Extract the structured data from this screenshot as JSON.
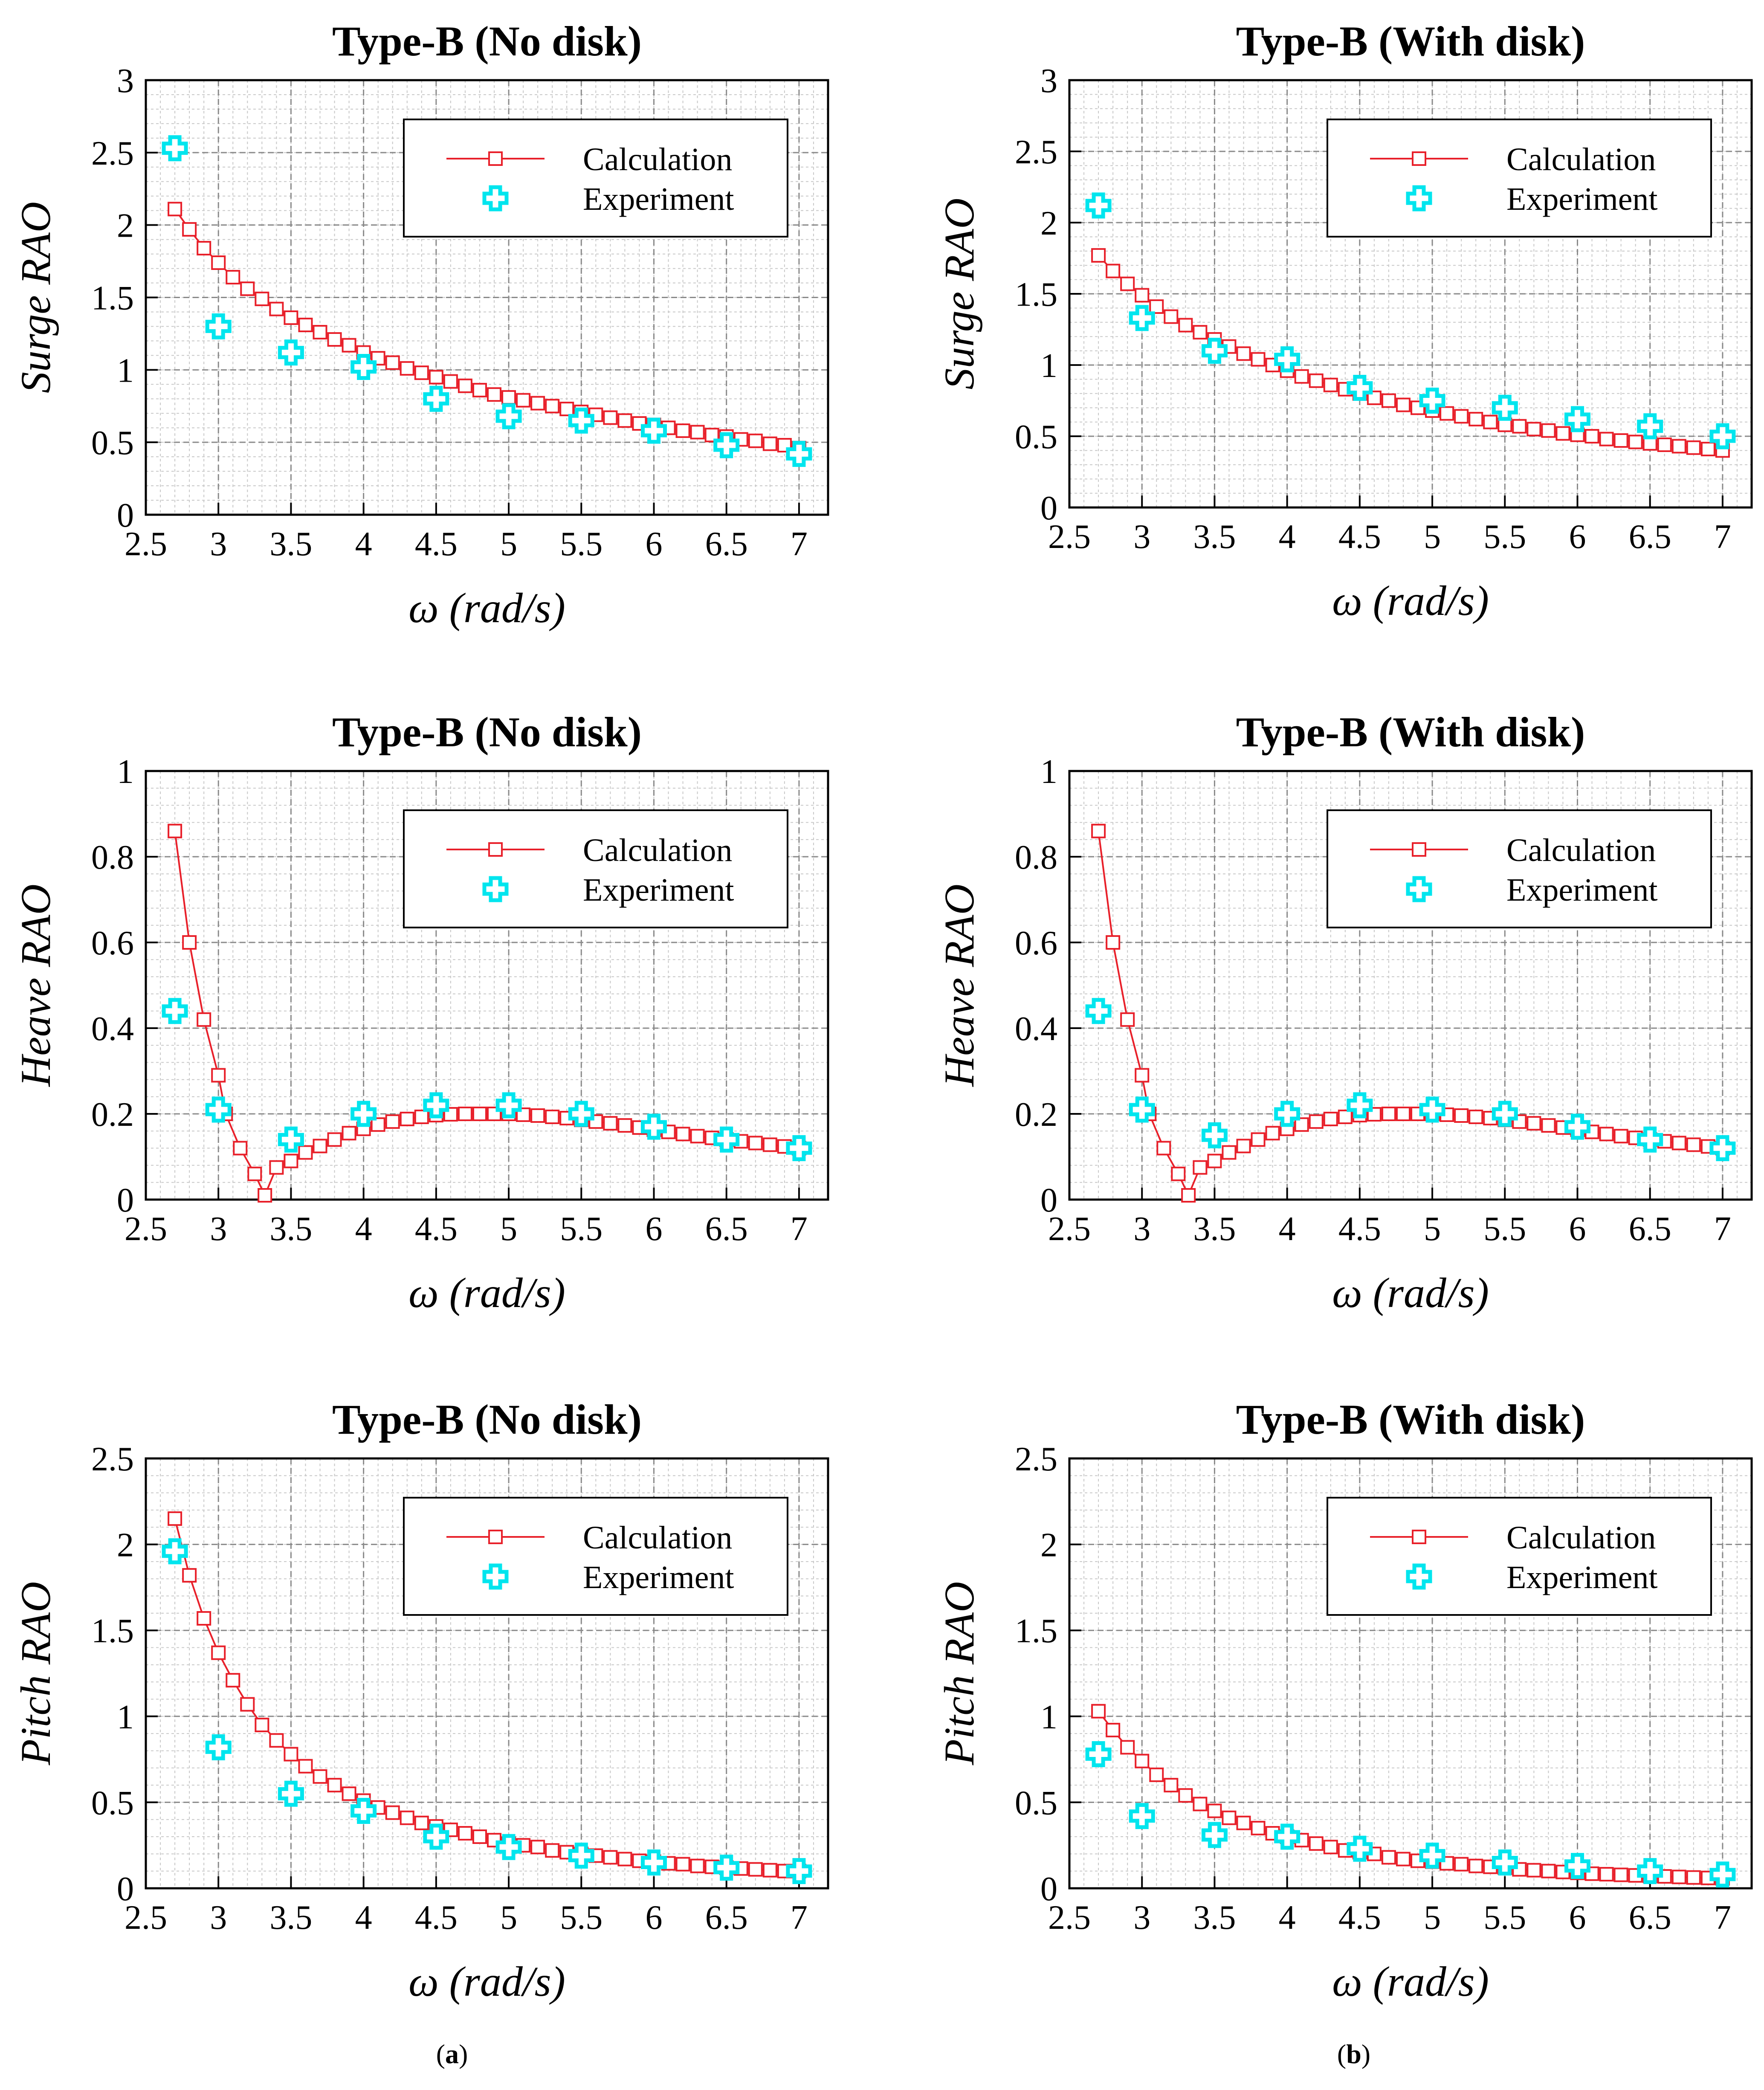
{
  "figure": {
    "panel_labels": [
      "a",
      "b"
    ],
    "colors": {
      "calculation": "#e8202a",
      "experiment": "#00e5ee",
      "grid_major": "#8a8a8a",
      "grid_minor": "#c8c8c8",
      "axis": "#000000"
    }
  },
  "chart_data": [
    {
      "type": "line",
      "title": "Type-B (No disk)",
      "xlabel": "ω (rad/s)",
      "ylabel": "Surge RAO",
      "xlim": [
        2.5,
        7.2
      ],
      "ylim": [
        0,
        3
      ],
      "xticks": [
        "2.5",
        "3",
        "3.5",
        "4",
        "4.5",
        "5",
        "5.5",
        "6",
        "6.5",
        "7"
      ],
      "yticks": [
        "0",
        "0.5",
        "1",
        "1.5",
        "2",
        "2.5",
        "3"
      ],
      "grid": true,
      "legend": "top-right",
      "series": [
        {
          "name": "Calculation",
          "marker": "square",
          "line": true,
          "x": [
            2.7,
            2.8,
            2.9,
            3.0,
            3.1,
            3.2,
            3.3,
            3.4,
            3.5,
            3.6,
            3.7,
            3.8,
            3.9,
            4.0,
            4.1,
            4.2,
            4.3,
            4.4,
            4.5,
            4.6,
            4.7,
            4.8,
            4.9,
            5.0,
            5.1,
            5.2,
            5.3,
            5.4,
            5.5,
            5.6,
            5.7,
            5.8,
            5.9,
            6.0,
            6.1,
            6.2,
            6.3,
            6.4,
            6.5,
            6.6,
            6.7,
            6.8,
            6.9,
            7.0
          ],
          "y": [
            2.11,
            1.97,
            1.84,
            1.74,
            1.64,
            1.56,
            1.49,
            1.42,
            1.36,
            1.31,
            1.26,
            1.21,
            1.17,
            1.12,
            1.08,
            1.05,
            1.01,
            0.98,
            0.95,
            0.92,
            0.89,
            0.86,
            0.83,
            0.81,
            0.79,
            0.77,
            0.75,
            0.73,
            0.71,
            0.69,
            0.67,
            0.65,
            0.63,
            0.62,
            0.6,
            0.58,
            0.57,
            0.55,
            0.54,
            0.52,
            0.51,
            0.49,
            0.48,
            0.46
          ]
        },
        {
          "name": "Experiment",
          "marker": "cross",
          "x": [
            2.7,
            3.0,
            3.5,
            4.0,
            4.5,
            5.0,
            5.5,
            6.0,
            6.5,
            7.0
          ],
          "y": [
            2.53,
            1.3,
            1.12,
            1.02,
            0.8,
            0.68,
            0.65,
            0.58,
            0.48,
            0.42
          ]
        }
      ]
    },
    {
      "type": "line",
      "title": "Type-B (With disk)",
      "xlabel": "ω (rad/s)",
      "ylabel": "Surge RAO",
      "xlim": [
        2.5,
        7.2
      ],
      "ylim": [
        0,
        3
      ],
      "xticks": [
        "2.5",
        "3",
        "3.5",
        "4",
        "4.5",
        "5",
        "5.5",
        "6",
        "6.5",
        "7"
      ],
      "yticks": [
        "0",
        "0.5",
        "1",
        "1.5",
        "2",
        "2.5",
        "3"
      ],
      "grid": true,
      "legend": "top-right",
      "series": [
        {
          "name": "Calculation",
          "marker": "square",
          "line": true,
          "x": [
            2.7,
            2.8,
            2.9,
            3.0,
            3.1,
            3.2,
            3.3,
            3.4,
            3.5,
            3.6,
            3.7,
            3.8,
            3.9,
            4.0,
            4.1,
            4.2,
            4.3,
            4.4,
            4.5,
            4.6,
            4.7,
            4.8,
            4.9,
            5.0,
            5.1,
            5.2,
            5.3,
            5.4,
            5.5,
            5.6,
            5.7,
            5.8,
            5.9,
            6.0,
            6.1,
            6.2,
            6.3,
            6.4,
            6.5,
            6.6,
            6.7,
            6.8,
            6.9,
            7.0
          ],
          "y": [
            1.77,
            1.66,
            1.57,
            1.49,
            1.41,
            1.34,
            1.28,
            1.23,
            1.18,
            1.13,
            1.08,
            1.04,
            1.0,
            0.96,
            0.92,
            0.89,
            0.86,
            0.83,
            0.8,
            0.77,
            0.75,
            0.72,
            0.7,
            0.68,
            0.66,
            0.64,
            0.62,
            0.6,
            0.58,
            0.57,
            0.55,
            0.54,
            0.52,
            0.51,
            0.5,
            0.48,
            0.47,
            0.46,
            0.45,
            0.44,
            0.43,
            0.42,
            0.41,
            0.4
          ]
        },
        {
          "name": "Experiment",
          "marker": "cross",
          "x": [
            2.7,
            3.0,
            3.5,
            4.0,
            4.5,
            5.0,
            5.5,
            6.0,
            6.5,
            7.0
          ],
          "y": [
            2.12,
            1.33,
            1.1,
            1.04,
            0.84,
            0.75,
            0.7,
            0.62,
            0.57,
            0.5
          ]
        }
      ]
    },
    {
      "type": "line",
      "title": "Type-B (No disk)",
      "xlabel": "ω (rad/s)",
      "ylabel": "Heave RAO",
      "xlim": [
        2.5,
        7.2
      ],
      "ylim": [
        0,
        1
      ],
      "xticks": [
        "2.5",
        "3",
        "3.5",
        "4",
        "4.5",
        "5",
        "5.5",
        "6",
        "6.5",
        "7"
      ],
      "yticks": [
        "0",
        "0.2",
        "0.4",
        "0.6",
        "0.8",
        "1"
      ],
      "grid": true,
      "legend": "top-right",
      "series": [
        {
          "name": "Calculation",
          "marker": "square",
          "line": true,
          "x": [
            2.7,
            2.8,
            2.9,
            3.0,
            3.05,
            3.15,
            3.25,
            3.32,
            3.4,
            3.5,
            3.6,
            3.7,
            3.8,
            3.9,
            4.0,
            4.1,
            4.2,
            4.3,
            4.4,
            4.5,
            4.6,
            4.7,
            4.8,
            4.9,
            5.0,
            5.1,
            5.2,
            5.3,
            5.4,
            5.5,
            5.6,
            5.7,
            5.8,
            5.9,
            6.0,
            6.1,
            6.2,
            6.3,
            6.4,
            6.5,
            6.6,
            6.7,
            6.8,
            6.9,
            7.0
          ],
          "y": [
            0.86,
            0.6,
            0.42,
            0.29,
            0.2,
            0.12,
            0.06,
            0.01,
            0.075,
            0.09,
            0.11,
            0.125,
            0.14,
            0.155,
            0.165,
            0.175,
            0.182,
            0.188,
            0.193,
            0.197,
            0.199,
            0.2,
            0.2,
            0.2,
            0.2,
            0.198,
            0.196,
            0.193,
            0.19,
            0.186,
            0.182,
            0.178,
            0.173,
            0.168,
            0.163,
            0.158,
            0.153,
            0.148,
            0.144,
            0.14,
            0.136,
            0.132,
            0.128,
            0.124,
            0.12
          ]
        },
        {
          "name": "Experiment",
          "marker": "cross",
          "x": [
            2.7,
            3.0,
            3.5,
            4.0,
            4.5,
            5.0,
            5.5,
            6.0,
            6.5,
            7.0
          ],
          "y": [
            0.44,
            0.21,
            0.14,
            0.2,
            0.22,
            0.22,
            0.2,
            0.17,
            0.14,
            0.12
          ]
        }
      ]
    },
    {
      "type": "line",
      "title": "Type-B (With disk)",
      "xlabel": "ω (rad/s)",
      "ylabel": "Heave RAO",
      "xlim": [
        2.5,
        7.2
      ],
      "ylim": [
        0,
        1
      ],
      "xticks": [
        "2.5",
        "3",
        "3.5",
        "4",
        "4.5",
        "5",
        "5.5",
        "6",
        "6.5",
        "7"
      ],
      "yticks": [
        "0",
        "0.2",
        "0.4",
        "0.6",
        "0.8",
        "1"
      ],
      "grid": true,
      "legend": "top-right",
      "series": [
        {
          "name": "Calculation",
          "marker": "square",
          "line": true,
          "x": [
            2.7,
            2.8,
            2.9,
            3.0,
            3.05,
            3.15,
            3.25,
            3.32,
            3.4,
            3.5,
            3.6,
            3.7,
            3.8,
            3.9,
            4.0,
            4.1,
            4.2,
            4.3,
            4.4,
            4.5,
            4.6,
            4.7,
            4.8,
            4.9,
            5.0,
            5.1,
            5.2,
            5.3,
            5.4,
            5.5,
            5.6,
            5.7,
            5.8,
            5.9,
            6.0,
            6.1,
            6.2,
            6.3,
            6.4,
            6.5,
            6.6,
            6.7,
            6.8,
            6.9,
            7.0
          ],
          "y": [
            0.86,
            0.6,
            0.42,
            0.29,
            0.2,
            0.12,
            0.06,
            0.01,
            0.075,
            0.09,
            0.11,
            0.125,
            0.14,
            0.155,
            0.165,
            0.175,
            0.182,
            0.188,
            0.193,
            0.197,
            0.199,
            0.2,
            0.2,
            0.2,
            0.2,
            0.198,
            0.196,
            0.193,
            0.19,
            0.186,
            0.182,
            0.178,
            0.173,
            0.168,
            0.163,
            0.158,
            0.153,
            0.148,
            0.144,
            0.14,
            0.136,
            0.132,
            0.128,
            0.124,
            0.12
          ]
        },
        {
          "name": "Experiment",
          "marker": "cross",
          "x": [
            2.7,
            3.0,
            3.5,
            4.0,
            4.5,
            5.0,
            5.5,
            6.0,
            6.5,
            7.0
          ],
          "y": [
            0.44,
            0.21,
            0.15,
            0.2,
            0.22,
            0.21,
            0.2,
            0.17,
            0.14,
            0.12
          ]
        }
      ]
    },
    {
      "type": "line",
      "title": "Type-B (No disk)",
      "xlabel": "ω (rad/s)",
      "ylabel": "Pitch RAO",
      "xlim": [
        2.5,
        7.2
      ],
      "ylim": [
        0,
        2.5
      ],
      "xticks": [
        "2.5",
        "3",
        "3.5",
        "4",
        "4.5",
        "5",
        "5.5",
        "6",
        "6.5",
        "7"
      ],
      "yticks": [
        "0",
        "0.5",
        "1",
        "1.5",
        "2",
        "2.5"
      ],
      "grid": true,
      "legend": "top-right",
      "series": [
        {
          "name": "Calculation",
          "marker": "square",
          "line": true,
          "x": [
            2.7,
            2.8,
            2.9,
            3.0,
            3.1,
            3.2,
            3.3,
            3.4,
            3.5,
            3.6,
            3.7,
            3.8,
            3.9,
            4.0,
            4.1,
            4.2,
            4.3,
            4.4,
            4.5,
            4.6,
            4.7,
            4.8,
            4.9,
            5.0,
            5.1,
            5.2,
            5.3,
            5.4,
            5.5,
            5.6,
            5.7,
            5.8,
            5.9,
            6.0,
            6.1,
            6.2,
            6.3,
            6.4,
            6.5,
            6.6,
            6.7,
            6.8,
            6.9,
            7.0
          ],
          "y": [
            2.15,
            1.82,
            1.57,
            1.37,
            1.21,
            1.07,
            0.95,
            0.86,
            0.78,
            0.71,
            0.65,
            0.6,
            0.55,
            0.51,
            0.47,
            0.44,
            0.41,
            0.38,
            0.36,
            0.34,
            0.32,
            0.3,
            0.28,
            0.26,
            0.25,
            0.24,
            0.22,
            0.21,
            0.2,
            0.19,
            0.18,
            0.17,
            0.16,
            0.155,
            0.145,
            0.14,
            0.13,
            0.125,
            0.12,
            0.115,
            0.11,
            0.105,
            0.1,
            0.1
          ]
        },
        {
          "name": "Experiment",
          "marker": "cross",
          "x": [
            2.7,
            3.0,
            3.5,
            4.0,
            4.5,
            5.0,
            5.5,
            6.0,
            6.5,
            7.0
          ],
          "y": [
            1.96,
            0.82,
            0.55,
            0.45,
            0.3,
            0.24,
            0.19,
            0.15,
            0.12,
            0.1
          ]
        }
      ]
    },
    {
      "type": "line",
      "title": "Type-B (With disk)",
      "xlabel": "ω (rad/s)",
      "ylabel": "Pitch RAO",
      "xlim": [
        2.5,
        7.2
      ],
      "ylim": [
        0,
        2.5
      ],
      "xticks": [
        "2.5",
        "3",
        "3.5",
        "4",
        "4.5",
        "5",
        "5.5",
        "6",
        "6.5",
        "7"
      ],
      "yticks": [
        "0",
        "0.5",
        "1",
        "1.5",
        "2",
        "2.5"
      ],
      "grid": true,
      "legend": "top-right",
      "series": [
        {
          "name": "Calculation",
          "marker": "square",
          "line": true,
          "x": [
            2.7,
            2.8,
            2.9,
            3.0,
            3.1,
            3.2,
            3.3,
            3.4,
            3.5,
            3.6,
            3.7,
            3.8,
            3.9,
            4.0,
            4.1,
            4.2,
            4.3,
            4.4,
            4.5,
            4.6,
            4.7,
            4.8,
            4.9,
            5.0,
            5.1,
            5.2,
            5.3,
            5.4,
            5.5,
            5.6,
            5.7,
            5.8,
            5.9,
            6.0,
            6.1,
            6.2,
            6.3,
            6.4,
            6.5,
            6.6,
            6.7,
            6.8,
            6.9,
            7.0
          ],
          "y": [
            1.03,
            0.92,
            0.82,
            0.74,
            0.66,
            0.6,
            0.54,
            0.49,
            0.45,
            0.41,
            0.38,
            0.35,
            0.32,
            0.3,
            0.28,
            0.26,
            0.24,
            0.22,
            0.21,
            0.2,
            0.18,
            0.17,
            0.16,
            0.155,
            0.145,
            0.14,
            0.13,
            0.125,
            0.12,
            0.11,
            0.105,
            0.1,
            0.095,
            0.09,
            0.085,
            0.082,
            0.078,
            0.075,
            0.072,
            0.069,
            0.066,
            0.063,
            0.06,
            0.058
          ]
        },
        {
          "name": "Experiment",
          "marker": "cross",
          "x": [
            2.7,
            3.0,
            3.5,
            4.0,
            4.5,
            5.0,
            5.5,
            6.0,
            6.5,
            7.0
          ],
          "y": [
            0.78,
            0.42,
            0.31,
            0.3,
            0.23,
            0.19,
            0.15,
            0.13,
            0.1,
            0.08
          ]
        }
      ]
    }
  ]
}
